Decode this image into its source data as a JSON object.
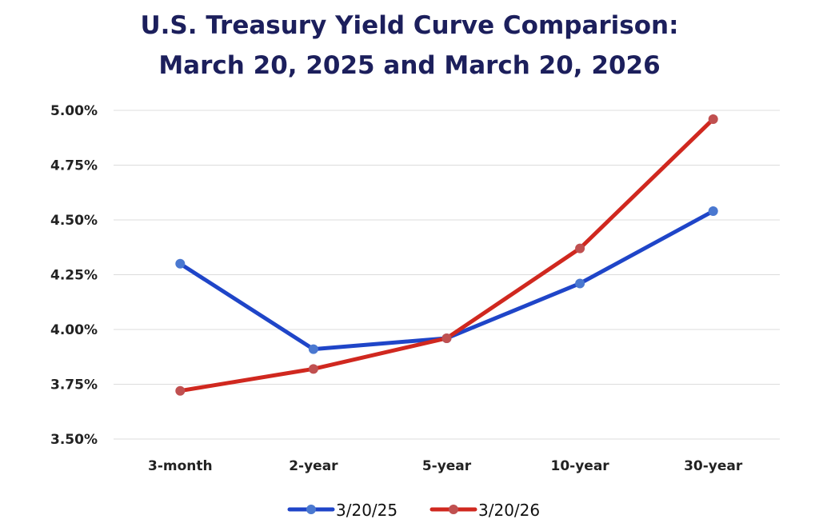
{
  "chart_data": {
    "type": "line",
    "title": "U.S. Treasury Yield Curve Comparison:",
    "subtitle": "March 20, 2025 and March 20, 2026",
    "categories": [
      "3-month",
      "2-year",
      "5-year",
      "10-year",
      "30-year"
    ],
    "y_ticks": [
      "3.50%",
      "3.75%",
      "4.00%",
      "4.25%",
      "4.50%",
      "4.75%",
      "5.00%"
    ],
    "ylim": [
      3.5,
      5.0
    ],
    "y_unit": "%",
    "grid": true,
    "legend_position": "bottom",
    "series": [
      {
        "name": "3/20/25",
        "values": [
          4.3,
          3.91,
          3.96,
          4.21,
          4.54
        ],
        "line_color": "#1f45c8",
        "marker_color": "#4a78d0"
      },
      {
        "name": "3/20/26",
        "values": [
          3.72,
          3.82,
          3.96,
          4.37,
          4.96
        ],
        "line_color": "#d0281f",
        "marker_color": "#c05050"
      }
    ]
  }
}
